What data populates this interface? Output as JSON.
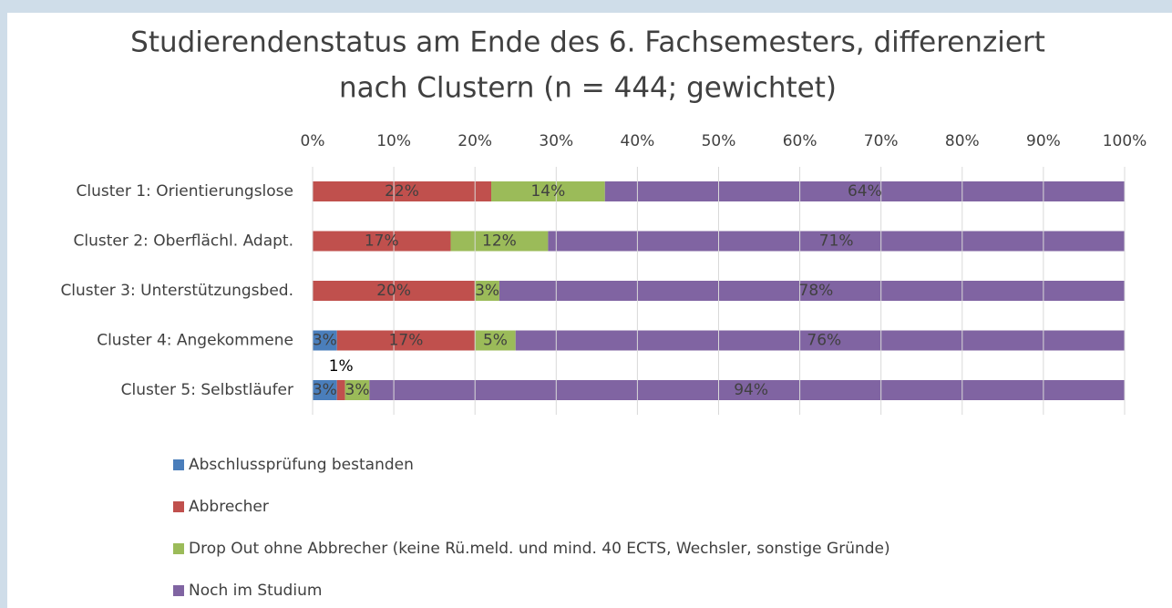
{
  "chart_data": {
    "type": "stacked_barh",
    "title": [
      "Studierendenstatus am Ende des 6. Fachsemesters, differenziert",
      "nach Clustern (n = 444; gewichtet)"
    ],
    "categories": [
      "Cluster 1: Orientierungslose",
      "Cluster 2: Oberflächl. Adapt.",
      "Cluster 3: Unterstützungsbed.",
      "Cluster 4: Angekommene",
      "Cluster 5: Selbstläufer"
    ],
    "series": [
      {
        "name": "Abschlussprüfung bestanden",
        "color": "#4a7ebb",
        "values": [
          null,
          null,
          null,
          3,
          3
        ],
        "value_labels": [
          null,
          null,
          null,
          "3%",
          "3%"
        ]
      },
      {
        "name": "Abbrecher",
        "color": "#c0504d",
        "values": [
          22,
          17,
          20,
          17,
          1
        ],
        "value_labels": [
          "22%",
          "17%",
          "20%",
          "17%",
          "1%"
        ]
      },
      {
        "name": "Drop Out ohne Abbrecher (keine Rü.meld. und mind. 40 ECTS, Wechsler, sonstige Gründe)",
        "color": "#9bbb59",
        "values": [
          14,
          12,
          3,
          5,
          3
        ],
        "value_labels": [
          "14%",
          "12%",
          "3%",
          "5%",
          "3%"
        ]
      },
      {
        "name": "Noch im Studium",
        "color": "#8064a2",
        "values": [
          64,
          71,
          78,
          76,
          94
        ],
        "value_labels": [
          "64%",
          "71%",
          "78%",
          "76%",
          "94%"
        ]
      }
    ],
    "xlim": [
      0,
      100
    ],
    "xticks": [
      {
        "value": 0,
        "label": "0%"
      },
      {
        "value": 10,
        "label": "10%"
      },
      {
        "value": 20,
        "label": "20%"
      },
      {
        "value": 30,
        "label": "30%"
      },
      {
        "value": 40,
        "label": "40%"
      },
      {
        "value": 50,
        "label": "50%"
      },
      {
        "value": 60,
        "label": "60%"
      },
      {
        "value": 70,
        "label": "70%"
      },
      {
        "value": 80,
        "label": "80%"
      },
      {
        "value": 90,
        "label": "90%"
      },
      {
        "value": 100,
        "label": "100%"
      }
    ],
    "grid": true
  }
}
